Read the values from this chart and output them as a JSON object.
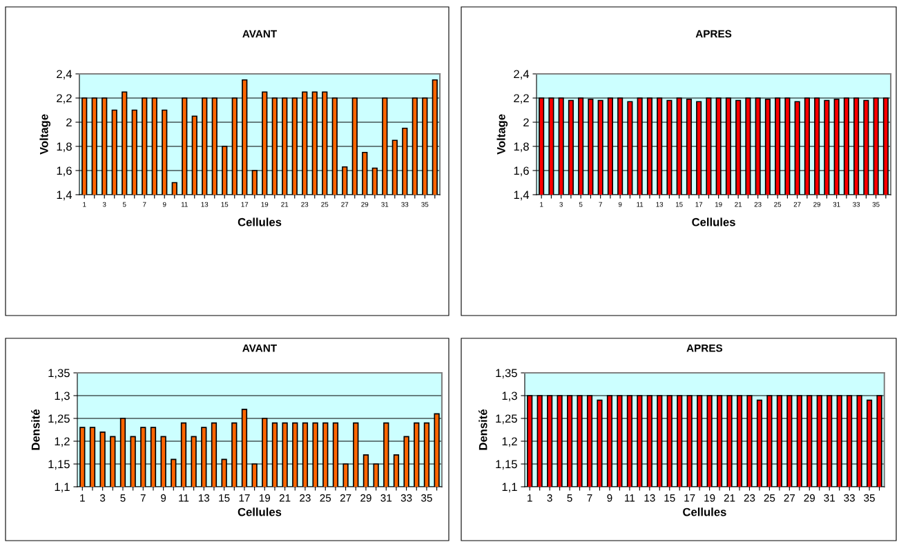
{
  "chart_data": [
    {
      "type": "bar",
      "title": "AVANT",
      "xlabel": "Cellules",
      "ylabel": "Voltage",
      "categories": [
        "1",
        null,
        "3",
        null,
        "5",
        null,
        "7",
        null,
        "9",
        null,
        "11",
        null,
        "13",
        null,
        "15",
        null,
        "17",
        null,
        "19",
        null,
        "21",
        null,
        "23",
        null,
        "25",
        null,
        "27",
        null,
        "29",
        null,
        "31",
        null,
        "33",
        null,
        "35",
        null
      ],
      "color": "#ff6600",
      "values": [
        2.2,
        2.2,
        2.2,
        2.1,
        2.25,
        2.1,
        2.2,
        2.2,
        2.1,
        1.5,
        2.2,
        2.05,
        2.2,
        2.2,
        1.8,
        2.2,
        2.35,
        1.6,
        2.25,
        2.2,
        2.2,
        2.2,
        2.25,
        2.25,
        2.25,
        2.2,
        1.63,
        2.2,
        1.75,
        1.62,
        2.2,
        1.85,
        1.95,
        2.2,
        2.2,
        2.35
      ],
      "ylim": [
        1.4,
        2.4
      ],
      "yticks": [
        {
          "value": 1.4,
          "label": "1,4"
        },
        {
          "value": 1.6,
          "label": "1,6"
        },
        {
          "value": 1.8,
          "label": "1,8"
        },
        {
          "value": 2,
          "label": "2"
        },
        {
          "value": 2.2,
          "label": "2,2"
        },
        {
          "value": 2.4,
          "label": "2,4"
        }
      ],
      "grid": "y"
    },
    {
      "type": "bar",
      "title": "APRES",
      "xlabel": "Cellules",
      "ylabel": "Voltage",
      "categories": [
        "1",
        null,
        "3",
        null,
        "5",
        null,
        "7",
        null,
        "9",
        null,
        "11",
        null,
        "13",
        null,
        "15",
        null,
        "17",
        null,
        "19",
        null,
        "21",
        null,
        "23",
        null,
        "25",
        null,
        "27",
        null,
        "29",
        null,
        "31",
        null,
        "33",
        null,
        "35",
        null
      ],
      "color": "#ff0000",
      "values": [
        2.2,
        2.2,
        2.2,
        2.18,
        2.2,
        2.19,
        2.18,
        2.2,
        2.2,
        2.17,
        2.2,
        2.2,
        2.2,
        2.18,
        2.2,
        2.19,
        2.17,
        2.2,
        2.2,
        2.2,
        2.18,
        2.2,
        2.2,
        2.19,
        2.2,
        2.2,
        2.17,
        2.2,
        2.2,
        2.18,
        2.19,
        2.2,
        2.2,
        2.18,
        2.2,
        2.2
      ],
      "ylim": [
        1.4,
        2.4
      ],
      "yticks": [
        {
          "value": 1.4,
          "label": "1,4"
        },
        {
          "value": 1.6,
          "label": "1,6"
        },
        {
          "value": 1.8,
          "label": "1,8"
        },
        {
          "value": 2,
          "label": "2"
        },
        {
          "value": 2.2,
          "label": "2,2"
        },
        {
          "value": 2.4,
          "label": "2,4"
        }
      ],
      "grid": "y"
    },
    {
      "type": "bar",
      "title": "AVANT",
      "xlabel": "Cellules",
      "ylabel": "Densité",
      "categories": [
        "1",
        null,
        "3",
        null,
        "5",
        null,
        "7",
        null,
        "9",
        null,
        "11",
        null,
        "13",
        null,
        "15",
        null,
        "17",
        null,
        "19",
        null,
        "21",
        null,
        "23",
        null,
        "25",
        null,
        "27",
        null,
        "29",
        null,
        "31",
        null,
        "33",
        null,
        "35",
        null
      ],
      "color": "#ff6600",
      "values": [
        1.23,
        1.23,
        1.22,
        1.21,
        1.25,
        1.21,
        1.23,
        1.23,
        1.21,
        1.16,
        1.24,
        1.21,
        1.23,
        1.24,
        1.16,
        1.24,
        1.27,
        1.15,
        1.25,
        1.24,
        1.24,
        1.24,
        1.24,
        1.24,
        1.24,
        1.24,
        1.15,
        1.24,
        1.17,
        1.15,
        1.24,
        1.17,
        1.21,
        1.24,
        1.24,
        1.26
      ],
      "ylim": [
        1.1,
        1.35
      ],
      "yticks": [
        {
          "value": 1.1,
          "label": "1,1"
        },
        {
          "value": 1.15,
          "label": "1,15"
        },
        {
          "value": 1.2,
          "label": "1,2"
        },
        {
          "value": 1.25,
          "label": "1,25"
        },
        {
          "value": 1.3,
          "label": "1,3"
        },
        {
          "value": 1.35,
          "label": "1,35"
        }
      ],
      "grid": "y"
    },
    {
      "type": "bar",
      "title": "APRES",
      "xlabel": "Cellules",
      "ylabel": "Densité",
      "categories": [
        "1",
        null,
        "3",
        null,
        "5",
        null,
        "7",
        null,
        "9",
        null,
        "11",
        null,
        "13",
        null,
        "15",
        null,
        "17",
        null,
        "19",
        null,
        "21",
        null,
        "23",
        null,
        "25",
        null,
        "27",
        null,
        "29",
        null,
        "31",
        null,
        "33",
        null,
        "35",
        null
      ],
      "color": "#ff0000",
      "values": [
        1.3,
        1.3,
        1.3,
        1.3,
        1.3,
        1.3,
        1.3,
        1.29,
        1.3,
        1.3,
        1.3,
        1.3,
        1.3,
        1.3,
        1.3,
        1.3,
        1.3,
        1.3,
        1.3,
        1.3,
        1.3,
        1.3,
        1.3,
        1.29,
        1.3,
        1.3,
        1.3,
        1.3,
        1.3,
        1.3,
        1.3,
        1.3,
        1.3,
        1.3,
        1.29,
        1.3
      ],
      "ylim": [
        1.1,
        1.35
      ],
      "yticks": [
        {
          "value": 1.1,
          "label": "1,1"
        },
        {
          "value": 1.15,
          "label": "1,15"
        },
        {
          "value": 1.2,
          "label": "1,2"
        },
        {
          "value": 1.25,
          "label": "1,25"
        },
        {
          "value": 1.3,
          "label": "1,3"
        },
        {
          "value": 1.35,
          "label": "1,35"
        }
      ],
      "grid": "y"
    }
  ]
}
